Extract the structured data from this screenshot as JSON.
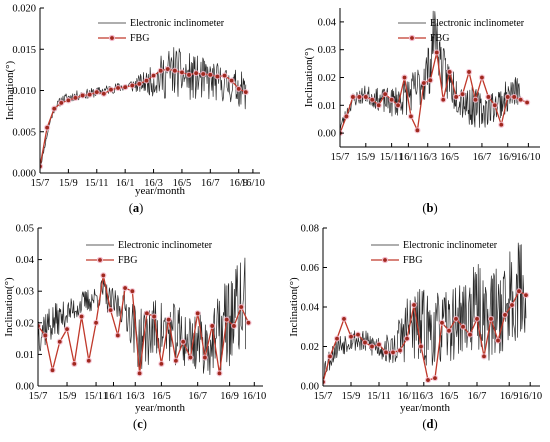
{
  "colors": {
    "electronic": "#262626",
    "fbg_line": "#c0392b",
    "fbg_marker": "#a0281e",
    "marker_halo": "#f3b8c9",
    "axis": "#000000"
  },
  "chart_data": [
    {
      "panel": "a",
      "type": "line",
      "caption_open": "(",
      "caption_letter": "a",
      "caption_close": ")",
      "xlabel": "year/month",
      "ylabel": "Inclination(°)",
      "xlim": [
        0,
        15.5
      ],
      "ylim": [
        0,
        0.02
      ],
      "xticks": [
        0,
        2,
        4,
        6,
        8,
        10,
        12,
        14
      ],
      "xtick_labels": [
        "15/7",
        "15/9",
        "15/11",
        "16/1",
        "16/3",
        "16/5",
        "16/7",
        "16/9",
        "16/10"
      ],
      "xtick_positions": [
        0,
        2,
        4,
        6,
        8,
        10,
        12,
        14,
        15
      ],
      "yticks": [
        0,
        0.005,
        0.01,
        0.015,
        0.02
      ],
      "ytick_labels": [
        "0.000",
        "0.005",
        "0.010",
        "0.015",
        "0.020"
      ],
      "legend_position": "top-right",
      "series": [
        {
          "name": "Electronic inclinometer",
          "kind": "noisy",
          "base_x": [
            0,
            0.3,
            0.7,
            1,
            1.5,
            2,
            3,
            4,
            5,
            6,
            7,
            8,
            8.7,
            9.5,
            10,
            11,
            12,
            13,
            14,
            14.5
          ],
          "base_y": [
            0.0005,
            0.003,
            0.0062,
            0.0078,
            0.0088,
            0.0092,
            0.0095,
            0.0098,
            0.0102,
            0.0105,
            0.0108,
            0.0112,
            0.0118,
            0.0125,
            0.0118,
            0.0115,
            0.0112,
            0.0108,
            0.0103,
            0.0098
          ],
          "amp_x": [
            0,
            1.5,
            6,
            7.5,
            9,
            11,
            13,
            14.5
          ],
          "amp_y": [
            0.0002,
            0.0006,
            0.0006,
            0.0014,
            0.0032,
            0.0028,
            0.0022,
            0.0022
          ],
          "x_start": 0,
          "x_end": 14.5,
          "n": 340,
          "seed": 11
        },
        {
          "name": "FBG",
          "kind": "markers",
          "x": [
            0,
            0.5,
            1.0,
            1.5,
            2.0,
            2.5,
            3.0,
            3.5,
            4.0,
            4.5,
            5.0,
            5.5,
            6.0,
            6.5,
            7.0,
            7.5,
            8.0,
            8.5,
            9.0,
            9.5,
            10.0,
            10.5,
            11.0,
            11.5,
            12.0,
            12.5,
            13.0,
            13.5,
            14.0,
            14.5
          ],
          "y": [
            0.0008,
            0.0055,
            0.0078,
            0.0085,
            0.0088,
            0.0091,
            0.0094,
            0.0095,
            0.0098,
            0.0096,
            0.0101,
            0.0103,
            0.0104,
            0.0106,
            0.0108,
            0.0112,
            0.0118,
            0.0124,
            0.0126,
            0.0124,
            0.0122,
            0.0119,
            0.0121,
            0.012,
            0.0119,
            0.0117,
            0.0118,
            0.0112,
            0.0102,
            0.0098
          ]
        }
      ]
    },
    {
      "panel": "b",
      "type": "line",
      "caption_open": "(",
      "caption_letter": "b",
      "caption_close": ")",
      "xlabel": "",
      "ylabel": "Inclination(°)",
      "xlim": [
        0,
        15.5
      ],
      "ylim": [
        -0.005,
        0.045
      ],
      "xtick_labels": [
        "15/7",
        "15/9",
        "15/11",
        "16/1",
        "16/3",
        "16/5",
        "16/7",
        "16/9",
        "16/10"
      ],
      "xtick_positions": [
        0,
        2,
        4,
        5.3,
        6.8,
        8.5,
        11,
        13,
        14.6
      ],
      "yticks": [
        0,
        0.01,
        0.02,
        0.03,
        0.04
      ],
      "ytick_labels": [
        "0.00",
        "0.01",
        "0.02",
        "0.03",
        "0.04"
      ],
      "legend_position": "top-right",
      "series": [
        {
          "name": "Electronic inclinometer",
          "kind": "noisy",
          "base_x": [
            0,
            1,
            2,
            3,
            4,
            5,
            6,
            7,
            7.3,
            8,
            9,
            10,
            11,
            12,
            13,
            14
          ],
          "base_y": [
            0.002,
            0.012,
            0.014,
            0.012,
            0.011,
            0.013,
            0.016,
            0.024,
            0.038,
            0.022,
            0.015,
            0.01,
            0.008,
            0.01,
            0.013,
            0.016
          ],
          "amp_x": [
            0,
            3,
            6,
            7,
            9,
            12,
            14
          ],
          "amp_y": [
            0.002,
            0.004,
            0.008,
            0.01,
            0.008,
            0.006,
            0.006
          ],
          "x_start": 0,
          "x_end": 14,
          "n": 320,
          "seed": 23
        },
        {
          "name": "FBG",
          "kind": "markers",
          "x": [
            0,
            0.5,
            1.0,
            1.5,
            2.0,
            2.5,
            3.0,
            3.5,
            4.0,
            4.5,
            5.0,
            5.5,
            6.0,
            6.5,
            7.0,
            7.5,
            8.0,
            8.5,
            9.0,
            9.5,
            10.0,
            10.5,
            11.0,
            11.5,
            12.0,
            12.5,
            13.0,
            13.5,
            14.0,
            14.5
          ],
          "y": [
            0.0,
            0.006,
            0.013,
            0.013,
            0.013,
            0.012,
            0.01,
            0.014,
            0.012,
            0.01,
            0.02,
            0.006,
            0.001,
            0.018,
            0.019,
            0.029,
            0.012,
            0.022,
            0.013,
            0.014,
            0.022,
            0.012,
            0.02,
            0.013,
            0.01,
            0.003,
            0.013,
            0.013,
            0.012,
            0.011
          ]
        }
      ]
    },
    {
      "panel": "c",
      "type": "line",
      "caption_open": "(",
      "caption_letter": "c",
      "caption_close": ")",
      "xlabel": "year/month",
      "ylabel": "Inclination(°)",
      "xlim": [
        0,
        15.5
      ],
      "ylim": [
        0,
        0.05
      ],
      "xtick_labels": [
        "15/7",
        "15/9",
        "15/11",
        "16/1",
        "16/3",
        "16/5",
        "16/7",
        "16/9",
        "16/10"
      ],
      "xtick_positions": [
        0,
        2,
        4,
        5.2,
        6.7,
        8.5,
        11,
        13.2,
        14.9
      ],
      "yticks": [
        0,
        0.01,
        0.02,
        0.03,
        0.04,
        0.05
      ],
      "ytick_labels": [
        "0.00",
        "0.01",
        "0.02",
        "0.03",
        "0.04",
        "0.05"
      ],
      "legend_position": "top-center",
      "series": [
        {
          "name": "Electronic inclinometer",
          "kind": "noisy",
          "base_x": [
            0,
            1,
            2,
            3,
            4,
            4.5,
            5,
            6,
            7,
            8,
            9,
            10,
            11,
            12,
            13,
            14
          ],
          "base_y": [
            0.018,
            0.02,
            0.023,
            0.026,
            0.028,
            0.03,
            0.026,
            0.025,
            0.014,
            0.018,
            0.017,
            0.015,
            0.014,
            0.013,
            0.02,
            0.025
          ],
          "amp_x": [
            0,
            2,
            4,
            6,
            7,
            9,
            12,
            13,
            14
          ],
          "amp_y": [
            0.008,
            0.004,
            0.004,
            0.006,
            0.01,
            0.01,
            0.01,
            0.016,
            0.016
          ],
          "x_start": 0,
          "x_end": 14.3,
          "n": 320,
          "seed": 37
        },
        {
          "name": "FBG",
          "kind": "markers",
          "x": [
            0,
            0.5,
            1.0,
            1.5,
            2.0,
            2.5,
            3.0,
            3.5,
            4.0,
            4.5,
            5.0,
            5.5,
            6.0,
            6.5,
            7.0,
            7.5,
            8.0,
            8.5,
            9.0,
            9.5,
            10.0,
            10.5,
            11.0,
            11.5,
            12.0,
            12.5,
            13.0,
            13.5,
            14.0,
            14.5
          ],
          "y": [
            0.019,
            0.016,
            0.005,
            0.014,
            0.018,
            0.007,
            0.022,
            0.008,
            0.02,
            0.035,
            0.024,
            0.016,
            0.031,
            0.03,
            0.004,
            0.023,
            0.022,
            0.007,
            0.021,
            0.008,
            0.014,
            0.009,
            0.023,
            0.009,
            0.019,
            0.004,
            0.021,
            0.019,
            0.025,
            0.02
          ]
        }
      ]
    },
    {
      "panel": "d",
      "type": "line",
      "caption_open": "(",
      "caption_letter": "d",
      "caption_close": ")",
      "xlabel": "year/month",
      "ylabel": "Inclination(°)",
      "xlim": [
        0,
        15.5
      ],
      "ylim": [
        0,
        0.08
      ],
      "xtick_labels": [
        "15/7",
        "15/9",
        "15/11",
        "16/1",
        "16/3",
        "16/5",
        "16/7",
        "16/9",
        "16/10"
      ],
      "xtick_positions": [
        0,
        2,
        4,
        6,
        7.2,
        9,
        11,
        13.3,
        14.8
      ],
      "yticks": [
        0,
        0.02,
        0.04,
        0.06,
        0.08
      ],
      "ytick_labels": [
        "0.00",
        "0.02",
        "0.04",
        "0.06",
        "0.08"
      ],
      "legend_position": "top-center",
      "series": [
        {
          "name": "Electronic inclinometer",
          "kind": "noisy",
          "base_x": [
            0,
            1,
            2,
            3,
            4,
            5,
            6,
            7,
            8,
            9,
            10,
            11,
            12,
            13,
            14,
            14.5
          ],
          "base_y": [
            0.008,
            0.02,
            0.024,
            0.022,
            0.02,
            0.018,
            0.03,
            0.03,
            0.028,
            0.03,
            0.035,
            0.04,
            0.035,
            0.042,
            0.05,
            0.045
          ],
          "amp_x": [
            0,
            3,
            5,
            6,
            7,
            9,
            11,
            13,
            14.5
          ],
          "amp_y": [
            0.006,
            0.006,
            0.008,
            0.018,
            0.02,
            0.018,
            0.022,
            0.026,
            0.026
          ],
          "x_start": 0,
          "x_end": 14.5,
          "n": 340,
          "seed": 53
        },
        {
          "name": "FBG",
          "kind": "markers",
          "x": [
            0,
            0.5,
            1.0,
            1.5,
            2.0,
            2.5,
            3.0,
            3.5,
            4.0,
            4.5,
            5.0,
            5.5,
            6.0,
            6.5,
            7.0,
            7.5,
            8.0,
            8.5,
            9.0,
            9.5,
            10.0,
            10.5,
            11.0,
            11.5,
            12.0,
            12.5,
            13.0,
            13.5,
            14.0,
            14.5
          ],
          "y": [
            0.002,
            0.015,
            0.024,
            0.034,
            0.025,
            0.026,
            0.022,
            0.02,
            0.021,
            0.017,
            0.017,
            0.018,
            0.024,
            0.041,
            0.02,
            0.003,
            0.004,
            0.032,
            0.028,
            0.034,
            0.03,
            0.026,
            0.034,
            0.015,
            0.034,
            0.023,
            0.036,
            0.041,
            0.048,
            0.046
          ]
        }
      ]
    }
  ]
}
